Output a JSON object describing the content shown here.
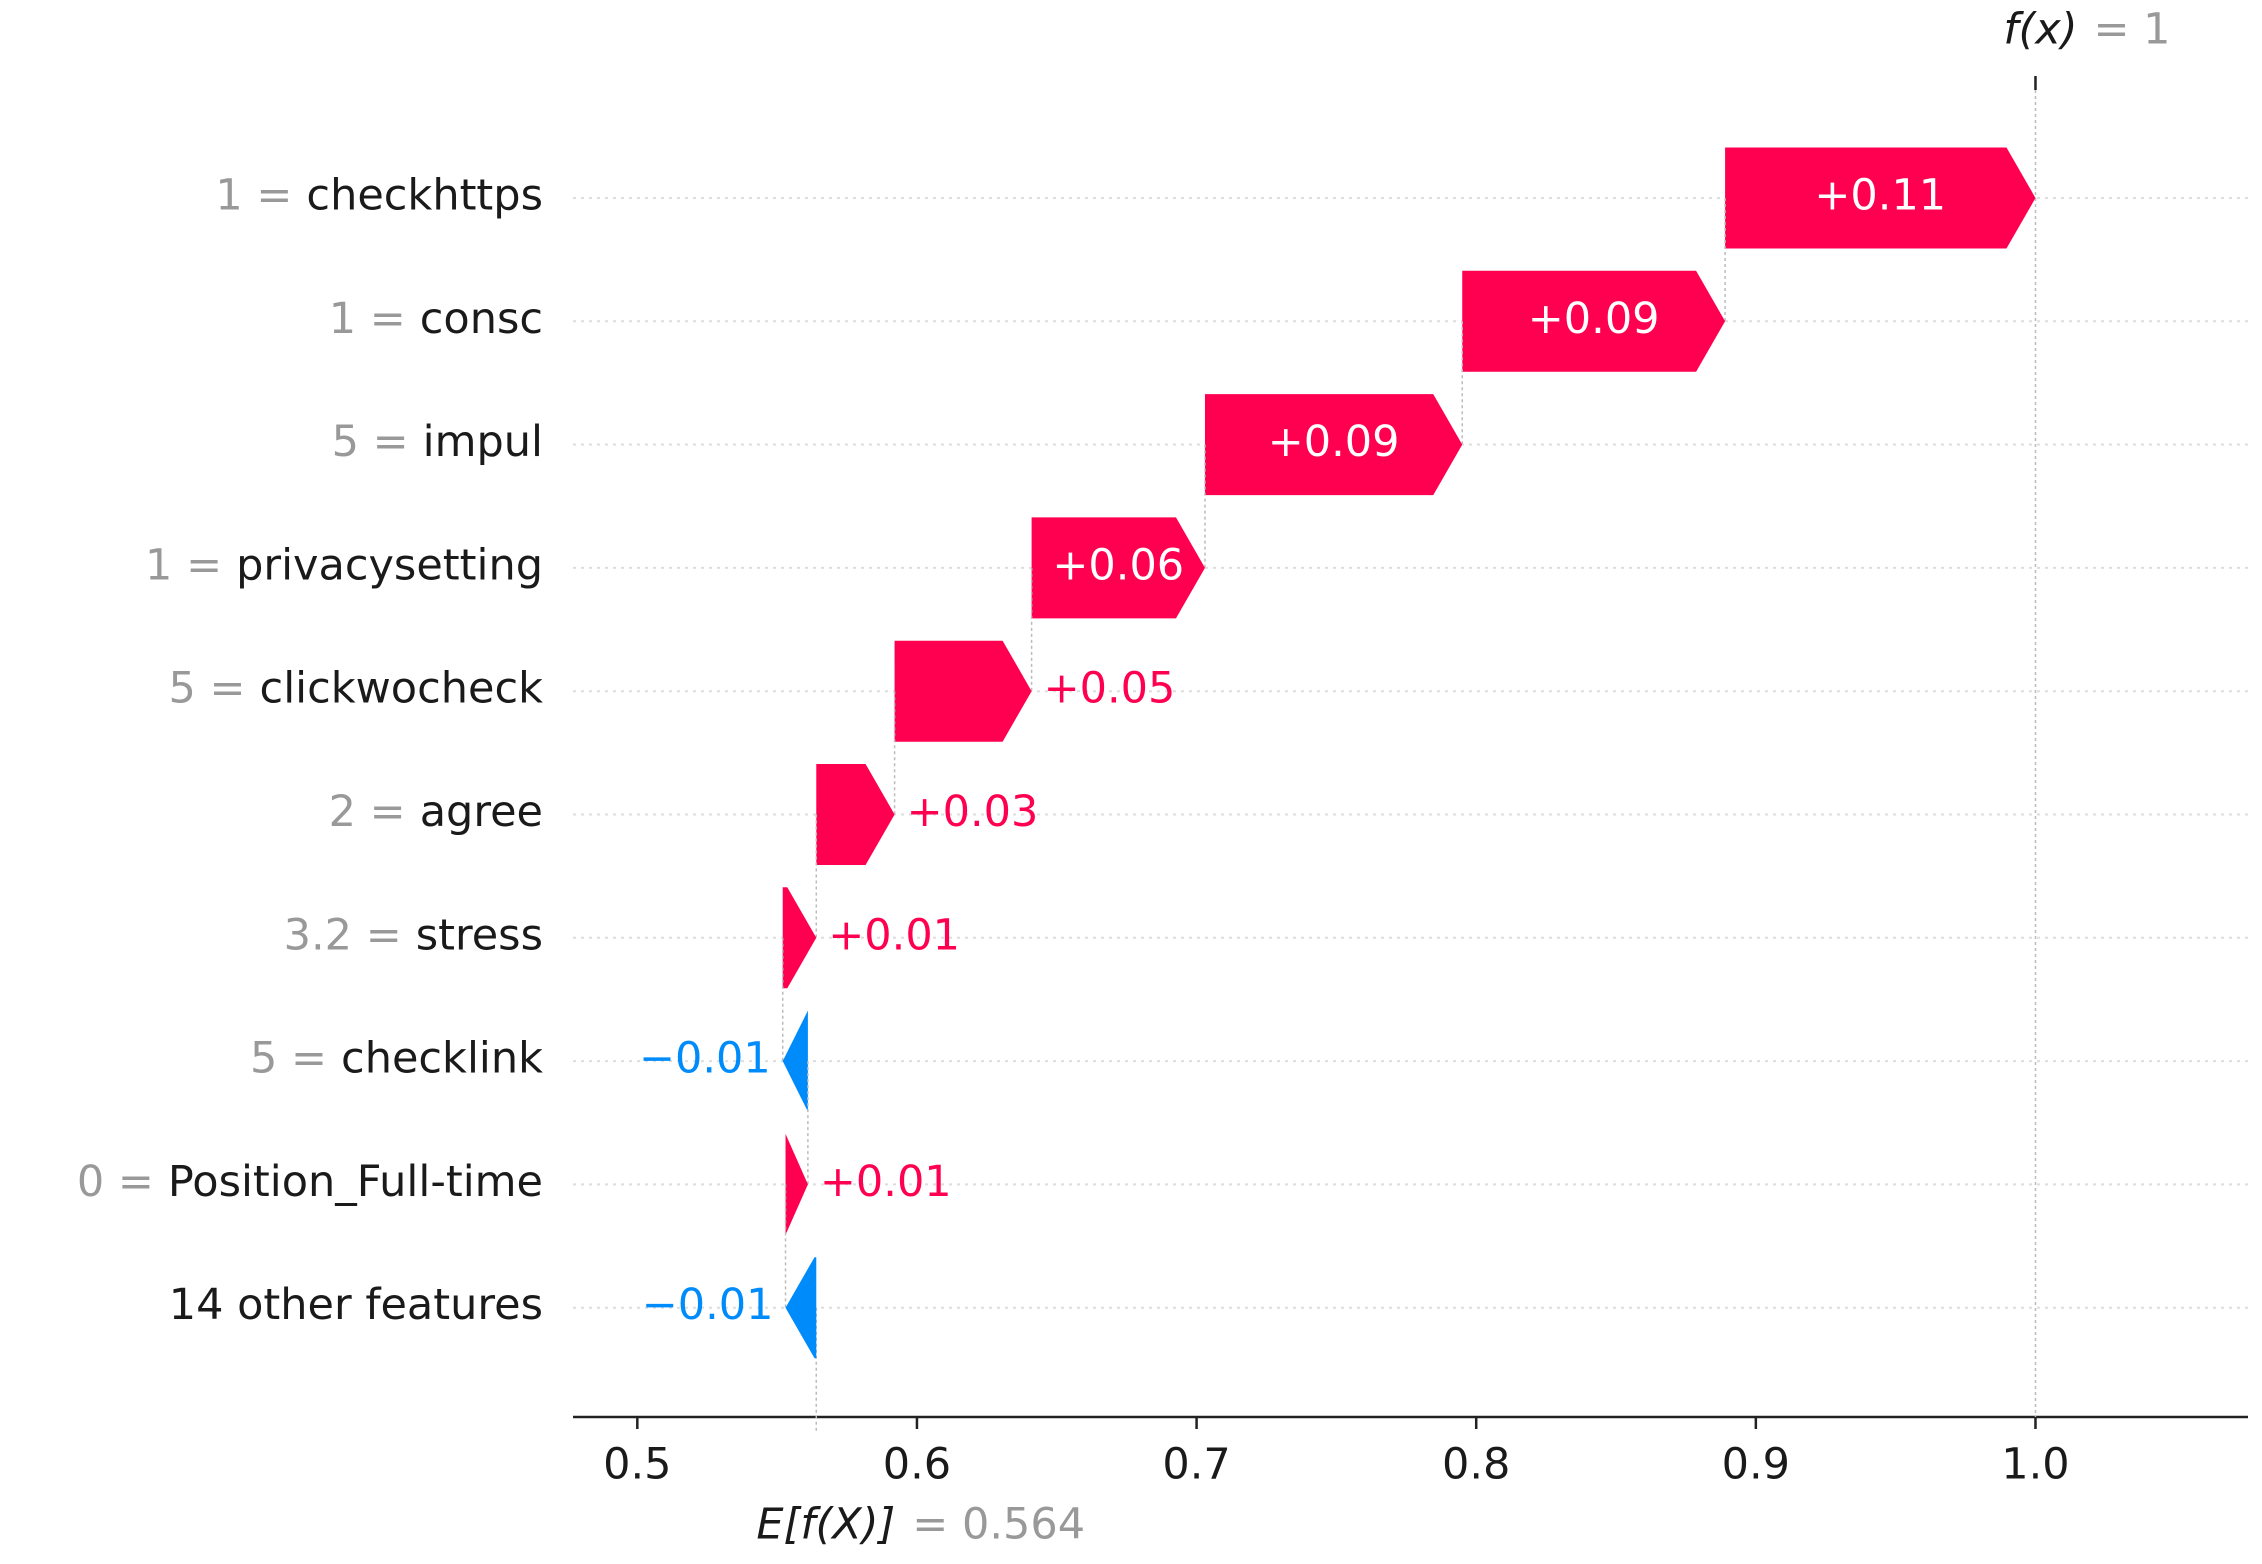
{
  "chart_data": {
    "type": "waterfall",
    "categories": [
      "checkhttps",
      "consc",
      "impul",
      "privacysetting",
      "clickwocheck",
      "agree",
      "stress",
      "checklink",
      "Position_Full-time",
      "14 other features"
    ],
    "feature_values": [
      "1 =",
      "1 =",
      "5 =",
      "1 =",
      "5 =",
      "2 =",
      "3.2 =",
      "5 =",
      "0 =",
      null
    ],
    "values": [
      0.111,
      0.094,
      0.092,
      0.062,
      0.049,
      0.028,
      0.012,
      -0.009,
      0.008,
      -0.011
    ],
    "value_labels": [
      "+0.11",
      "+0.09",
      "+0.09",
      "+0.06",
      "+0.05",
      "+0.03",
      "+0.01",
      "−0.01",
      "+0.01",
      "−0.01"
    ],
    "base_name": "E[f(X)]",
    "base": {
      "value": 0.564,
      "label": "= 0.564"
    },
    "output_name": "f(x)",
    "output": {
      "value": 1,
      "label": "= 1"
    },
    "positive_color": "#ff0051",
    "negative_color": "#008bfb",
    "xlim": [
      0.477,
      1.076
    ],
    "xticks": [
      0.5,
      0.6,
      0.7,
      0.8,
      0.9,
      {
        "value": 1,
        "label": "1.0"
      }
    ]
  }
}
